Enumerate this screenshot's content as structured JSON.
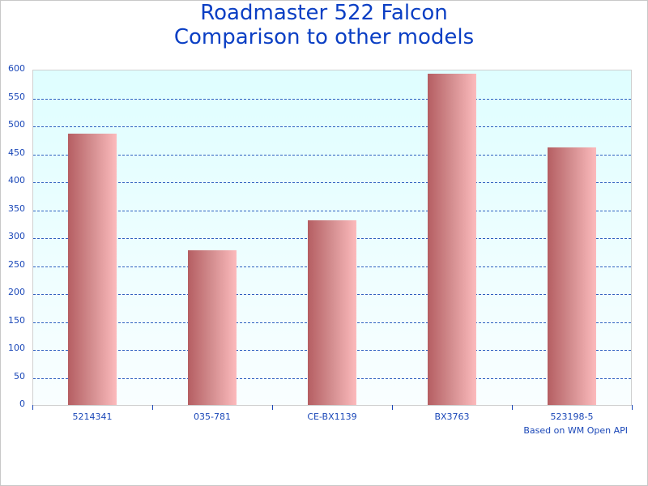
{
  "chart_title_line1": "Roadmaster 522 Falcon",
  "chart_title_line2": "Comparison to other models",
  "credit": "Based on WM Open API",
  "colors": {
    "title": "#0b3fc4",
    "axis_text": "#1a47b8",
    "grid": "#2d5fbf",
    "plot_bg_top": "#dffeff",
    "plot_bg_bottom": "#f9feff",
    "bar_dark": "#b55e62",
    "bar_light": "#fcbabc"
  },
  "y_ticks": [
    "0",
    "50",
    "100",
    "150",
    "200",
    "250",
    "300",
    "350",
    "400",
    "450",
    "500",
    "550",
    "600"
  ],
  "chart_data": {
    "type": "bar",
    "title": "Roadmaster 522 Falcon Comparison to other models",
    "categories": [
      "5214341",
      "035-781",
      "CE-BX1139",
      "BX3763",
      "523198-5"
    ],
    "values": [
      486,
      277,
      330,
      593,
      461
    ],
    "xlabel": "",
    "ylabel": "",
    "ylim": [
      0,
      600
    ],
    "yticks": [
      0,
      50,
      100,
      150,
      200,
      250,
      300,
      350,
      400,
      450,
      500,
      550,
      600
    ],
    "grid": "horizontal dashed",
    "legend": "none",
    "annotation": "Based on WM Open API"
  }
}
